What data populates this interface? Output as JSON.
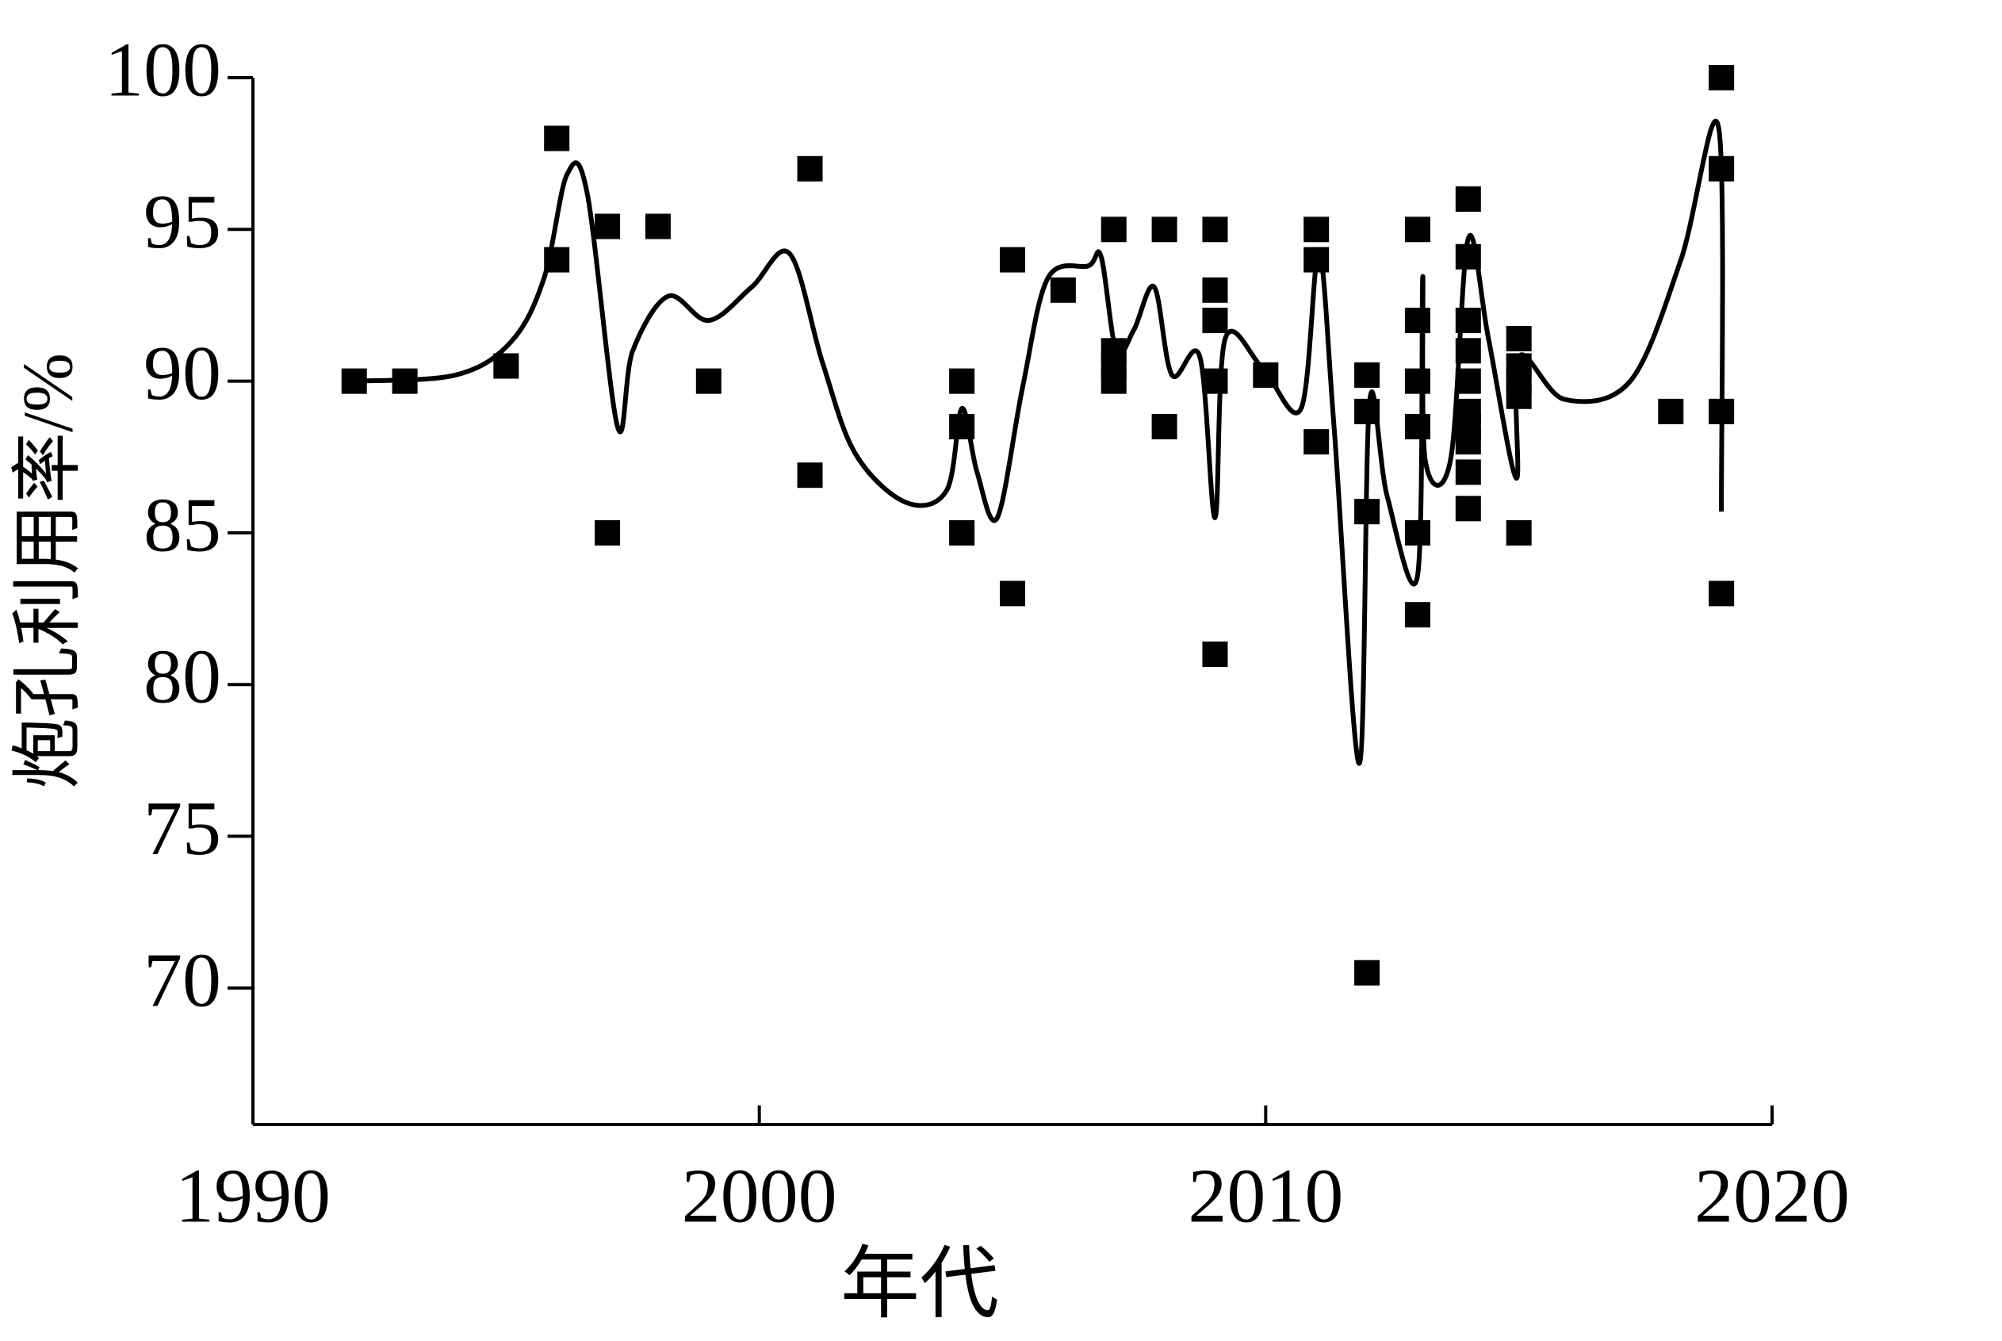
{
  "chart_data": {
    "type": "scatter",
    "xlabel": "年代",
    "ylabel": "炮孔利用率/%",
    "xlim": [
      1990,
      2020
    ],
    "xticks": [
      1990,
      2000,
      2010,
      2020
    ],
    "ylim": [
      65.5,
      100
    ],
    "yticks": [
      70,
      75,
      80,
      85,
      90,
      95,
      100
    ],
    "grid": false,
    "series": [
      {
        "color": "#000000",
        "x": [
          1992,
          1993,
          1995,
          1996,
          1996,
          1997,
          1997,
          1998,
          1999,
          2001,
          2001,
          2004,
          2004,
          2004,
          2005,
          2005,
          2006,
          2007,
          2007,
          2007,
          2007,
          2008,
          2008,
          2009,
          2009,
          2009,
          2009,
          2009,
          2010,
          2011,
          2011,
          2011,
          2012,
          2012,
          2012,
          2012,
          2013,
          2013,
          2013,
          2013,
          2013,
          2013,
          2014,
          2014,
          2014,
          2014,
          2014,
          2014,
          2014,
          2014,
          2014,
          2014,
          2015,
          2015,
          2015,
          2015,
          2015,
          2018,
          2019,
          2019,
          2019,
          2019
        ],
        "values": [
          90,
          90,
          90.5,
          98,
          94,
          95.1,
          85,
          95.1,
          90,
          97,
          86.9,
          90,
          88.5,
          85,
          94,
          83,
          93,
          95,
          91,
          90.5,
          90,
          95,
          88.5,
          95,
          93,
          92,
          90,
          81,
          90.2,
          95,
          94,
          88,
          90.2,
          89,
          85.7,
          70.5,
          95,
          92,
          90,
          88.5,
          85,
          82.3,
          96,
          94.1,
          92,
          91,
          90,
          89,
          88.5,
          88,
          87,
          85.8,
          91.4,
          90.5,
          90,
          89.5,
          85,
          89,
          100,
          97,
          89,
          83
        ]
      }
    ],
    "curve": {
      "color": "#000000",
      "x": [
        1992,
        1994,
        1995.1,
        1995.75,
        1996.2,
        1996.6,
        1997.2,
        1997.5,
        1998.2,
        1999,
        1999.85,
        2000.6,
        2001.25,
        2001.9,
        2002.9,
        2003.7,
        2004,
        2004.3,
        2004.7,
        2005.2,
        2005.7,
        2006.5,
        2006.75,
        2007.05,
        2007.4,
        2007.8,
        2008.15,
        2008.7,
        2009,
        2009.2,
        2009.95,
        2010.7,
        2011.05,
        2011.35,
        2011.85,
        2012.05,
        2012.4,
        2013,
        2013.1,
        2013.15,
        2013.65,
        2014,
        2014.4,
        2014.95,
        2015,
        2015.9,
        2017.2,
        2018.2,
        2018.95,
        2019
      ],
      "y": [
        90,
        90.2,
        91.3,
        93.4,
        96.8,
        96.2,
        88.5,
        91,
        92.8,
        92,
        93.1,
        94.2,
        90.6,
        87.6,
        86,
        86.4,
        89.1,
        87,
        85.5,
        89.8,
        93.4,
        93.8,
        94.1,
        91,
        91.7,
        93.1,
        90.2,
        90.8,
        85.5,
        91.4,
        90.4,
        89.1,
        94.2,
        88.5,
        77.4,
        89.3,
        86.2,
        83.6,
        93.4,
        87.4,
        87.4,
        94.7,
        91.4,
        86.8,
        90.8,
        89.4,
        90,
        94,
        98.3,
        85.7
      ]
    }
  }
}
